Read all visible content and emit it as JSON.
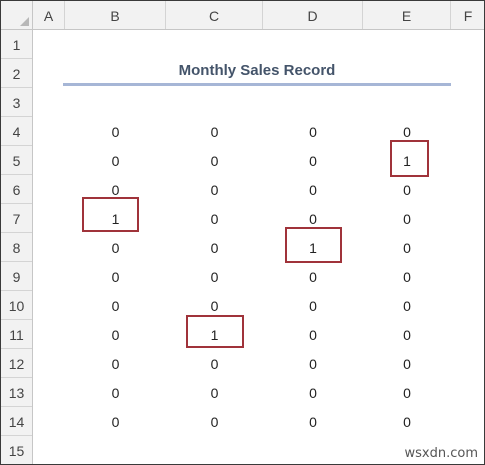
{
  "columns": [
    "A",
    "B",
    "C",
    "D",
    "E",
    "F"
  ],
  "rows": [
    "1",
    "2",
    "3",
    "4",
    "5",
    "6",
    "7",
    "8",
    "9",
    "10",
    "11",
    "12",
    "13",
    "14",
    "15"
  ],
  "title": "Monthly Sales Record",
  "table": {
    "B": [
      "0",
      "0",
      "0",
      "1",
      "0",
      "0",
      "0",
      "0",
      "0",
      "0",
      "0"
    ],
    "C": [
      "0",
      "0",
      "0",
      "0",
      "0",
      "0",
      "0",
      "1",
      "0",
      "0",
      "0"
    ],
    "D": [
      "0",
      "0",
      "0",
      "0",
      "1",
      "0",
      "0",
      "0",
      "0",
      "0",
      "0"
    ],
    "E": [
      "0",
      "1",
      "0",
      "0",
      "0",
      "0",
      "0",
      "0",
      "0",
      "0",
      "0"
    ]
  },
  "highlight_color": "#a0333a",
  "watermark": "wsxdn.com"
}
